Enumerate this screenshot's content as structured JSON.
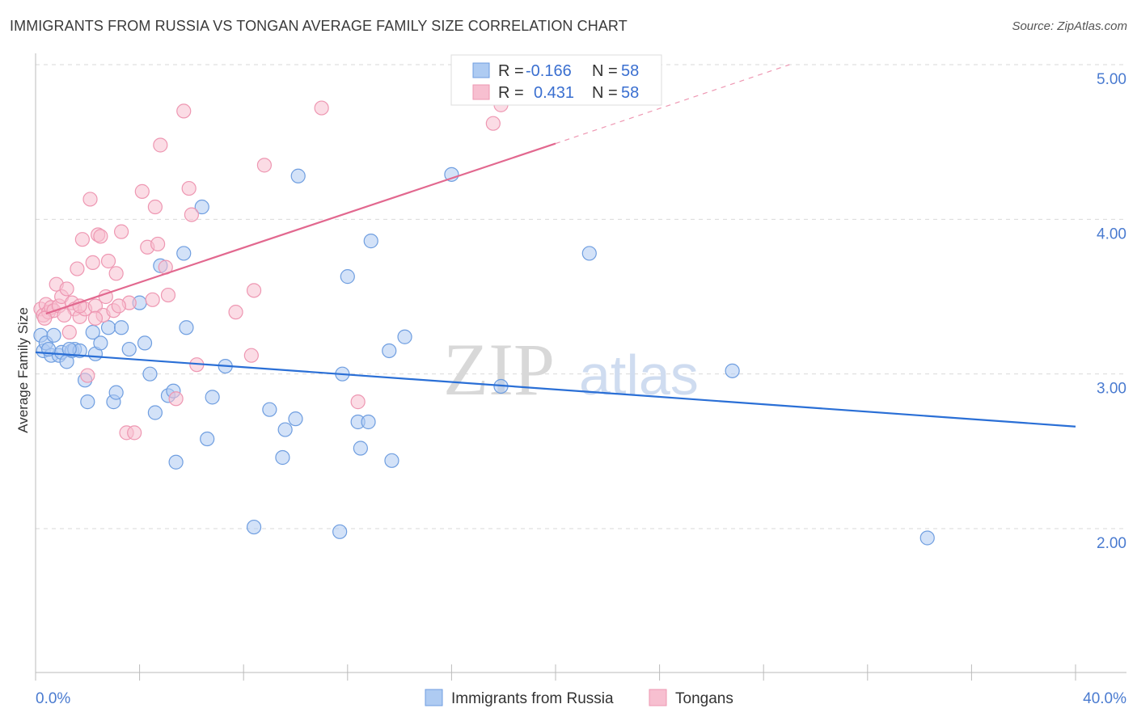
{
  "title": "IMMIGRANTS FROM RUSSIA VS TONGAN AVERAGE FAMILY SIZE CORRELATION CHART",
  "source": "Source: ZipAtlas.com",
  "watermark": {
    "zip": "ZIP",
    "atlas": "atlas"
  },
  "colors": {
    "russia_fill": "#aecbf2",
    "russia_stroke": "#6f9ee0",
    "russia_line": "#2a6fd6",
    "tongan_fill": "#f7bfd0",
    "tongan_stroke": "#ee97b2",
    "tongan_line": "#e2688f",
    "tick_blue": "#4a7bd0",
    "grid": "#d9d9d9"
  },
  "legend": {
    "rows": [
      {
        "r_label": "R =",
        "r_value": "-0.166",
        "n_label": "N =",
        "n_value": "58"
      },
      {
        "r_label": "R =",
        "r_value": "0.431",
        "n_label": "N =",
        "n_value": "58"
      }
    ]
  },
  "chart_data": {
    "type": "scatter",
    "title": "IMMIGRANTS FROM RUSSIA VS TONGAN AVERAGE FAMILY SIZE CORRELATION CHART",
    "xlabel": "",
    "ylabel": "Average Family Size",
    "x_tick_labels": [
      "0.0%",
      "40.0%"
    ],
    "y_ticks": [
      2.0,
      3.0,
      4.0,
      5.0
    ],
    "y_tick_labels": [
      "2.00",
      "3.00",
      "4.00",
      "5.00"
    ],
    "xlim": [
      0,
      40
    ],
    "ylim": [
      1.1,
      5.2
    ],
    "grid": true,
    "legend_position": "top-center",
    "series": [
      {
        "name": "Immigrants from Russia",
        "color": "#6f9ee0",
        "trend": {
          "x": [
            0,
            40
          ],
          "y": [
            3.14,
            2.66
          ]
        },
        "points": [
          [
            0.2,
            3.25
          ],
          [
            0.3,
            3.15
          ],
          [
            0.4,
            3.2
          ],
          [
            0.6,
            3.12
          ],
          [
            0.7,
            3.25
          ],
          [
            0.9,
            3.12
          ],
          [
            1.0,
            3.14
          ],
          [
            1.2,
            3.08
          ],
          [
            1.4,
            3.15
          ],
          [
            1.5,
            3.16
          ],
          [
            1.7,
            3.15
          ],
          [
            1.9,
            2.96
          ],
          [
            2.0,
            2.82
          ],
          [
            2.3,
            3.13
          ],
          [
            2.2,
            3.27
          ],
          [
            2.5,
            3.2
          ],
          [
            2.8,
            3.3
          ],
          [
            3.0,
            2.82
          ],
          [
            3.1,
            2.88
          ],
          [
            3.3,
            3.3
          ],
          [
            3.6,
            3.16
          ],
          [
            4.0,
            3.46
          ],
          [
            4.2,
            3.2
          ],
          [
            4.4,
            3.0
          ],
          [
            4.6,
            2.75
          ],
          [
            4.8,
            3.7
          ],
          [
            5.1,
            2.86
          ],
          [
            5.3,
            2.89
          ],
          [
            5.4,
            2.43
          ],
          [
            5.7,
            3.78
          ],
          [
            5.8,
            3.3
          ],
          [
            6.4,
            4.08
          ],
          [
            6.6,
            2.58
          ],
          [
            6.8,
            2.85
          ],
          [
            7.3,
            3.05
          ],
          [
            8.4,
            2.01
          ],
          [
            9.0,
            2.77
          ],
          [
            9.5,
            2.46
          ],
          [
            9.6,
            2.64
          ],
          [
            10.0,
            2.71
          ],
          [
            10.1,
            4.28
          ],
          [
            11.7,
            1.98
          ],
          [
            11.8,
            3.0
          ],
          [
            12.0,
            3.63
          ],
          [
            12.4,
            2.69
          ],
          [
            12.5,
            2.52
          ],
          [
            12.8,
            2.69
          ],
          [
            12.9,
            3.86
          ],
          [
            13.6,
            3.15
          ],
          [
            13.7,
            2.44
          ],
          [
            14.2,
            3.24
          ],
          [
            16.0,
            4.29
          ],
          [
            17.9,
            2.92
          ],
          [
            21.3,
            3.78
          ],
          [
            26.8,
            3.02
          ],
          [
            34.3,
            1.94
          ],
          [
            0.5,
            3.16
          ],
          [
            1.3,
            3.16
          ]
        ]
      },
      {
        "name": "Tongans",
        "color": "#ee97b2",
        "trend": {
          "x": [
            0.4,
            20.0
          ],
          "y": [
            3.39,
            4.49
          ]
        },
        "trend_dashed": {
          "x": [
            20.0,
            29.0
          ],
          "y": [
            4.49,
            5.0
          ]
        },
        "points": [
          [
            0.2,
            3.42
          ],
          [
            0.3,
            3.38
          ],
          [
            0.4,
            3.45
          ],
          [
            0.5,
            3.4
          ],
          [
            0.6,
            3.43
          ],
          [
            0.7,
            3.41
          ],
          [
            0.8,
            3.58
          ],
          [
            0.9,
            3.44
          ],
          [
            1.0,
            3.5
          ],
          [
            1.2,
            3.55
          ],
          [
            1.3,
            3.27
          ],
          [
            1.4,
            3.46
          ],
          [
            1.5,
            3.42
          ],
          [
            1.6,
            3.68
          ],
          [
            1.7,
            3.37
          ],
          [
            1.8,
            3.87
          ],
          [
            1.9,
            3.42
          ],
          [
            2.0,
            2.99
          ],
          [
            2.1,
            4.13
          ],
          [
            2.2,
            3.72
          ],
          [
            2.3,
            3.44
          ],
          [
            2.4,
            3.9
          ],
          [
            2.5,
            3.89
          ],
          [
            2.6,
            3.38
          ],
          [
            2.7,
            3.5
          ],
          [
            2.8,
            3.73
          ],
          [
            3.0,
            3.41
          ],
          [
            3.1,
            3.65
          ],
          [
            3.3,
            3.92
          ],
          [
            3.5,
            2.62
          ],
          [
            3.8,
            2.62
          ],
          [
            3.6,
            3.46
          ],
          [
            4.1,
            4.18
          ],
          [
            4.3,
            3.82
          ],
          [
            4.5,
            3.48
          ],
          [
            4.6,
            4.08
          ],
          [
            4.7,
            3.84
          ],
          [
            4.8,
            4.48
          ],
          [
            5.0,
            3.69
          ],
          [
            5.1,
            3.51
          ],
          [
            5.4,
            2.84
          ],
          [
            5.7,
            4.7
          ],
          [
            5.9,
            4.2
          ],
          [
            6.0,
            4.03
          ],
          [
            6.2,
            3.06
          ],
          [
            7.7,
            3.4
          ],
          [
            8.3,
            3.12
          ],
          [
            8.4,
            3.54
          ],
          [
            8.8,
            4.35
          ],
          [
            11.0,
            4.72
          ],
          [
            12.4,
            2.82
          ],
          [
            17.6,
            4.62
          ],
          [
            17.9,
            4.74
          ],
          [
            0.35,
            3.36
          ],
          [
            1.1,
            3.38
          ],
          [
            2.3,
            3.36
          ],
          [
            3.2,
            3.44
          ],
          [
            1.7,
            3.44
          ]
        ]
      }
    ]
  }
}
